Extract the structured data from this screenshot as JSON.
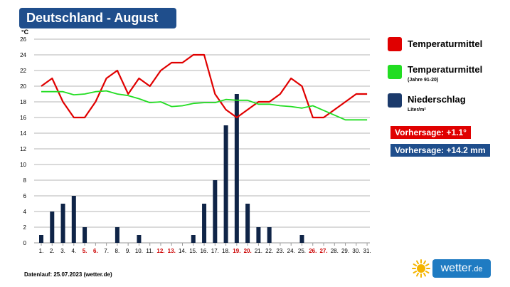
{
  "header": {
    "title": "Deutschland - August"
  },
  "legend": {
    "temp": {
      "label": "Temperaturmittel",
      "color": "#e00000"
    },
    "temp_normal": {
      "label": "Temperaturmittel",
      "sublabel": "(Jahre 91-20)",
      "color": "#22dd22"
    },
    "precip": {
      "label": "Niederschlag",
      "sublabel": "Liter/m²",
      "color": "#1b3a6b"
    }
  },
  "forecast": {
    "temp": {
      "label": "Vorhersage: +1.1°",
      "color": "#e00000"
    },
    "precip": {
      "label": "Vorhersage: +14.2 mm",
      "color": "#1f4e8c"
    }
  },
  "footer": {
    "text": "Datenlauf: 25.07.2023 (wetter.de)"
  },
  "brand": {
    "name": "wetter",
    "tld": ".de",
    "icon": "sun-icon"
  },
  "chart_data": {
    "type": "bar+line",
    "unit_label": "°C",
    "ylim": [
      0,
      26
    ],
    "yticks": [
      0,
      2,
      4,
      6,
      8,
      10,
      12,
      14,
      16,
      18,
      20,
      22,
      24,
      26
    ],
    "grid": true,
    "categories": [
      "1.",
      "2.",
      "3.",
      "4.",
      "5.",
      "6.",
      "7.",
      "8.",
      "9.",
      "10.",
      "11.",
      "12.",
      "13.",
      "14.",
      "15.",
      "16.",
      "17.",
      "18.",
      "19.",
      "20.",
      "21.",
      "22.",
      "23.",
      "24.",
      "25.",
      "26.",
      "27.",
      "28.",
      "29.",
      "30.",
      "31."
    ],
    "weekend_days": [
      "5.",
      "6.",
      "12.",
      "13.",
      "19.",
      "20.",
      "26.",
      "27."
    ],
    "weekend_color": "#cc0000",
    "series": [
      {
        "name": "Niederschlag",
        "kind": "bar",
        "color": "#0f2447",
        "values": [
          1,
          4,
          5,
          6,
          2,
          0,
          0,
          2,
          0,
          1,
          0,
          0,
          0,
          0,
          1,
          5,
          8,
          15,
          19,
          5,
          2,
          2,
          0,
          0,
          1,
          0,
          0,
          0,
          0,
          0,
          0
        ]
      },
      {
        "name": "Temperaturmittel",
        "kind": "line",
        "color": "#e00000",
        "values": [
          20,
          21,
          18,
          16,
          16,
          18,
          21,
          22,
          19,
          21,
          20,
          22,
          23,
          23,
          24,
          24,
          19,
          17,
          16,
          17,
          18,
          18,
          19,
          21,
          20,
          16,
          16,
          17,
          18,
          19,
          19
        ]
      },
      {
        "name": "Temperaturmittel (Jahre 91-20)",
        "kind": "line",
        "color": "#22dd22",
        "values": [
          19.3,
          19.3,
          19.3,
          18.9,
          19.0,
          19.3,
          19.4,
          19.0,
          18.8,
          18.4,
          17.9,
          18.0,
          17.4,
          17.5,
          17.8,
          17.9,
          17.9,
          18.3,
          18.2,
          18.2,
          17.7,
          17.7,
          17.5,
          17.4,
          17.2,
          17.5,
          16.9,
          16.3,
          15.7,
          15.7,
          15.7
        ]
      }
    ]
  }
}
